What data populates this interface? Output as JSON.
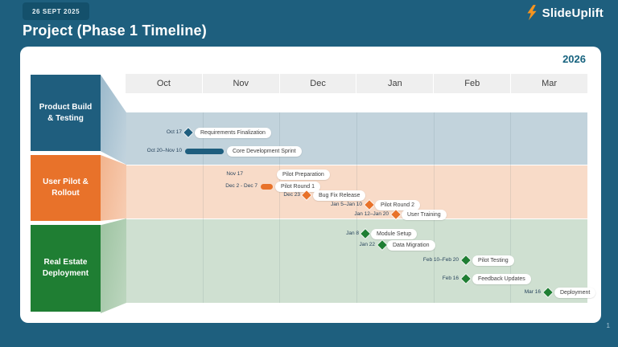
{
  "slide": {
    "date_badge": "26 SEPT 2025",
    "title": "Project (Phase 1 Timeline)",
    "logo_text": "SlideUplift",
    "year_label": "2026",
    "page_number": "1"
  },
  "colors": {
    "background": "#1E5F7E",
    "badge": "#14506B",
    "card": "#FFFFFF",
    "year_text": "#17637F",
    "month_header_bg": "#EFEFEF",
    "band_blue": "#C2D3DC",
    "band_orange": "#F8DBC8",
    "band_green": "#CFE0D1",
    "teal": "#1F5E7E",
    "orange": "#E8722A",
    "green": "#1F7E33",
    "logo_icon_orange": "#F7941E"
  },
  "chart_data": {
    "type": "gantt",
    "title": "Project (Phase 1 Timeline)",
    "year_label": "2026",
    "x_axis": {
      "months": [
        "Oct",
        "Nov",
        "Dec",
        "Jan",
        "Feb",
        "Mar"
      ]
    },
    "legend_position": "left",
    "grid": true,
    "groups": [
      {
        "name": "Product Build & Testing",
        "color": "#1F5E7E",
        "band_color": "#C2D3DC",
        "items": [
          {
            "label": "Requirements Finalization",
            "date": "Oct 17",
            "marker": "diamond"
          },
          {
            "label": "Core Development Sprint",
            "date": "Oct 20–Nov 10",
            "marker": "bar"
          }
        ]
      },
      {
        "name": "User Pilot & Rollout",
        "color": "#E8722A",
        "band_color": "#F8DBC8",
        "items": [
          {
            "label": "Pilot Preparation",
            "date": "Nov 17",
            "marker": "none"
          },
          {
            "label": "Pilot Round 1",
            "date": "Dec 2 - Dec 7",
            "marker": "bar"
          },
          {
            "label": "Bug Fix Release",
            "date": "Dec 23",
            "marker": "diamond"
          },
          {
            "label": "Pilot Round 2",
            "date": "Jan 5–Jan 10",
            "marker": "diamond"
          },
          {
            "label": "User Training",
            "date": "Jan 12–Jan 20",
            "marker": "diamond"
          }
        ]
      },
      {
        "name": "Real Estate Deployment",
        "color": "#1F7E33",
        "band_color": "#CFE0D1",
        "items": [
          {
            "label": "Module Setup",
            "date": "Jan 8",
            "marker": "diamond"
          },
          {
            "label": "Data Migration",
            "date": "Jan 22",
            "marker": "diamond"
          },
          {
            "label": "Pilot Testing",
            "date": "Feb 10–Feb 20",
            "marker": "diamond"
          },
          {
            "label": "Feedback Updates",
            "date": "Feb 16",
            "marker": "diamond"
          },
          {
            "label": "Deployment",
            "date": "Mar 16",
            "marker": "diamond"
          }
        ]
      }
    ]
  }
}
